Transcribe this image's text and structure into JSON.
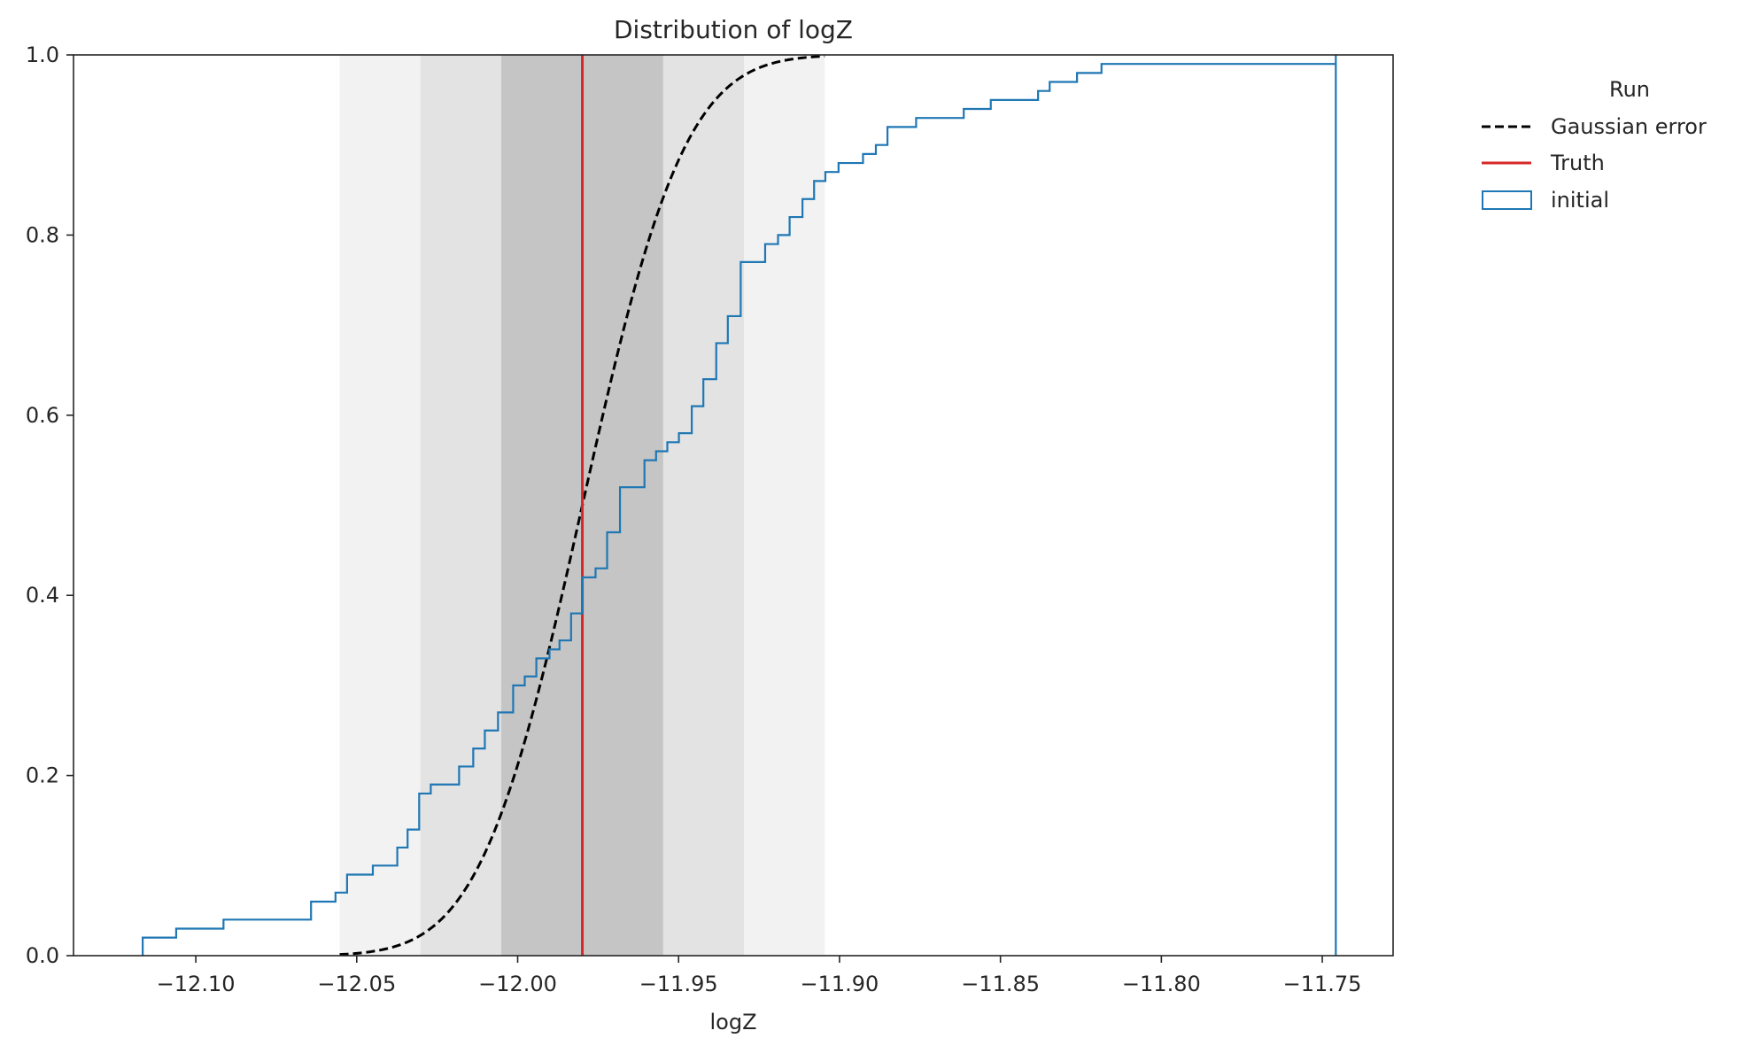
{
  "chart_data": {
    "type": "line",
    "title": "Distribution of logZ",
    "xlabel": "logZ",
    "ylabel": "",
    "xlim": [
      -12.138,
      -11.728
    ],
    "ylim": [
      0,
      1
    ],
    "x_ticks": [
      -12.1,
      -12.05,
      -12.0,
      -11.95,
      -11.9,
      -11.85,
      -11.8,
      -11.75
    ],
    "x_tick_labels": [
      "−12.10",
      "−12.05",
      "−12.00",
      "−11.95",
      "−11.90",
      "−11.85",
      "−11.80",
      "−11.75"
    ],
    "y_ticks": [
      0,
      0.2,
      0.4,
      0.6,
      0.8,
      1.0
    ],
    "y_tick_labels": [
      "0.0",
      "0.2",
      "0.4",
      "0.6",
      "0.8",
      "1.0"
    ],
    "grid": false,
    "legend": {
      "title": "Run",
      "position": "outside-right-top",
      "entries": [
        "Gaussian error",
        "Truth",
        "initial"
      ]
    },
    "bands": [
      {
        "x0": -12.0553,
        "x1": -11.9046,
        "color": "#f0f0f0"
      },
      {
        "x0": -12.0302,
        "x1": -11.9297,
        "color": "#e0e0e0"
      },
      {
        "x0": -12.0051,
        "x1": -11.9548,
        "color": "#c0c0c0"
      }
    ],
    "series": [
      {
        "name": "Gaussian error",
        "kind": "normal-cdf",
        "mean": -11.9799,
        "sigma": 0.0251,
        "x_range": [
          -12.0553,
          -11.9046
        ],
        "color": "#000000",
        "dash": true
      },
      {
        "name": "Truth",
        "kind": "vline",
        "x": -11.9799,
        "color": "#d62728"
      },
      {
        "name": "initial",
        "kind": "step-ecdf",
        "color": "#1f77b4",
        "steps": [
          [
            -12.1165,
            0.02
          ],
          [
            -12.1061,
            0.03
          ],
          [
            -12.0914,
            0.04
          ],
          [
            -12.0642,
            0.06
          ],
          [
            -12.0566,
            0.07
          ],
          [
            -12.053,
            0.09
          ],
          [
            -12.045,
            0.1
          ],
          [
            -12.0374,
            0.12
          ],
          [
            -12.0342,
            0.14
          ],
          [
            -12.0306,
            0.18
          ],
          [
            -12.027,
            0.19
          ],
          [
            -12.0182,
            0.21
          ],
          [
            -12.0138,
            0.23
          ],
          [
            -12.0102,
            0.25
          ],
          [
            -12.0061,
            0.27
          ],
          [
            -12.0014,
            0.3
          ],
          [
            -11.9978,
            0.31
          ],
          [
            -11.9942,
            0.33
          ],
          [
            -11.9901,
            0.34
          ],
          [
            -11.987,
            0.35
          ],
          [
            -11.9834,
            0.38
          ],
          [
            -11.9798,
            0.42
          ],
          [
            -11.9758,
            0.43
          ],
          [
            -11.9722,
            0.47
          ],
          [
            -11.9682,
            0.52
          ],
          [
            -11.9606,
            0.55
          ],
          [
            -11.957,
            0.56
          ],
          [
            -11.9535,
            0.57
          ],
          [
            -11.9499,
            0.58
          ],
          [
            -11.9459,
            0.61
          ],
          [
            -11.9423,
            0.64
          ],
          [
            -11.9383,
            0.68
          ],
          [
            -11.9347,
            0.71
          ],
          [
            -11.9307,
            0.77
          ],
          [
            -11.9231,
            0.79
          ],
          [
            -11.9191,
            0.8
          ],
          [
            -11.9155,
            0.82
          ],
          [
            -11.9115,
            0.84
          ],
          [
            -11.9079,
            0.86
          ],
          [
            -11.9044,
            0.87
          ],
          [
            -11.9003,
            0.88
          ],
          [
            -11.8927,
            0.89
          ],
          [
            -11.8887,
            0.9
          ],
          [
            -11.8851,
            0.92
          ],
          [
            -11.8762,
            0.93
          ],
          [
            -11.8614,
            0.94
          ],
          [
            -11.853,
            0.95
          ],
          [
            -11.8383,
            0.96
          ],
          [
            -11.8347,
            0.97
          ],
          [
            -11.8262,
            0.98
          ],
          [
            -11.8186,
            0.99
          ],
          [
            -11.7458,
            1.0
          ]
        ]
      }
    ]
  }
}
